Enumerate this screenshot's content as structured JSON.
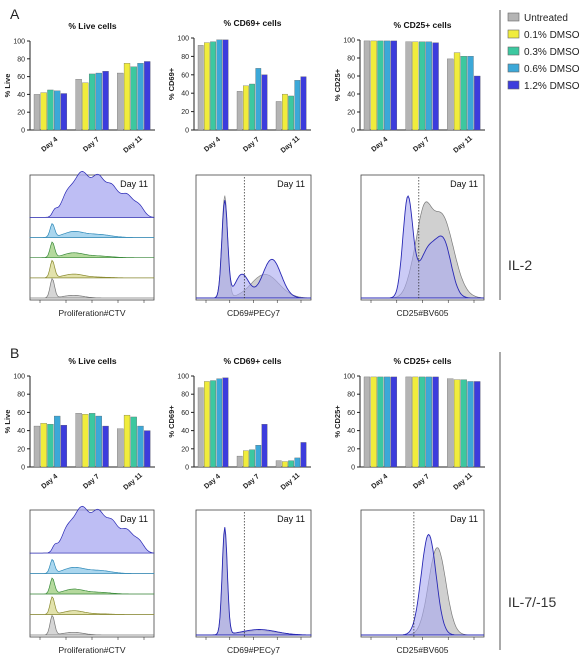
{
  "figure": {
    "colors": {
      "untreated": "#b4b4b4",
      "dmso_0_1": "#f0ec3c",
      "dmso_0_3": "#3cc8a0",
      "dmso_0_6": "#3ca8d8",
      "dmso_1_2": "#3c3cdc",
      "hist_fill": "#a8a8f0",
      "hist_line": "#2828b4",
      "hist_grey": "#c8c8c8"
    },
    "legend": [
      {
        "label": "Untreated",
        "color": "#b4b4b4"
      },
      {
        "label": "0.1% DMSO",
        "color": "#f0ec3c"
      },
      {
        "label": "0.3% DMSO",
        "color": "#3cc8a0"
      },
      {
        "label": "0.6% DMSO",
        "color": "#3ca8d8"
      },
      {
        "label": "1.2% DMSO",
        "color": "#3c3cdc"
      }
    ],
    "panels": [
      {
        "letter": "A",
        "condition": "IL-2"
      },
      {
        "letter": "B",
        "condition": "IL-7/-15"
      }
    ],
    "hist_day_label": "Day 11",
    "hist_titles": [
      "Proliferation#CTV",
      "CD69#PECy7",
      "CD25#BV605"
    ],
    "bar_titles": [
      "% Live cells",
      "% CD69+ cells",
      "% CD25+ cells"
    ],
    "bar_ylabels": [
      "% Live",
      "% CD69+",
      "% CD25+"
    ]
  },
  "chart_data": [
    {
      "type": "bar",
      "panel": "A",
      "title": "% Live cells",
      "ylabel": "% Live",
      "categories": [
        "Day 4",
        "Day 7",
        "Day 11"
      ],
      "ylim": [
        0,
        100
      ],
      "yticks": [
        0,
        20,
        40,
        60,
        80,
        100
      ],
      "series": [
        {
          "name": "Untreated",
          "values": [
            40,
            57,
            64
          ]
        },
        {
          "name": "0.1% DMSO",
          "values": [
            42,
            53,
            75
          ]
        },
        {
          "name": "0.3% DMSO",
          "values": [
            45,
            63,
            71
          ]
        },
        {
          "name": "0.6% DMSO",
          "values": [
            44,
            64,
            75
          ]
        },
        {
          "name": "1.2% DMSO",
          "values": [
            41,
            66,
            77
          ]
        }
      ]
    },
    {
      "type": "bar",
      "panel": "A",
      "title": "% CD69+ cells",
      "ylabel": "% CD69+",
      "categories": [
        "Day 4",
        "Day 7",
        "Day 11"
      ],
      "ylim": [
        0,
        100
      ],
      "yticks": [
        0,
        20,
        40,
        60,
        80,
        100
      ],
      "series": [
        {
          "name": "Untreated",
          "values": [
            92,
            42,
            31
          ]
        },
        {
          "name": "0.1% DMSO",
          "values": [
            95,
            48,
            39
          ]
        },
        {
          "name": "0.3% DMSO",
          "values": [
            96,
            50,
            37
          ]
        },
        {
          "name": "0.6% DMSO",
          "values": [
            98,
            67,
            54
          ]
        },
        {
          "name": "1.2% DMSO",
          "values": [
            98,
            60,
            58
          ]
        }
      ]
    },
    {
      "type": "bar",
      "panel": "A",
      "title": "% CD25+ cells",
      "ylabel": "% CD25+",
      "categories": [
        "Day 4",
        "Day 7",
        "Day 11"
      ],
      "ylim": [
        0,
        100
      ],
      "yticks": [
        0,
        20,
        40,
        60,
        80,
        100
      ],
      "series": [
        {
          "name": "Untreated",
          "values": [
            99,
            98,
            79
          ]
        },
        {
          "name": "0.1% DMSO",
          "values": [
            99,
            98,
            86
          ]
        },
        {
          "name": "0.3% DMSO",
          "values": [
            99,
            98,
            82
          ]
        },
        {
          "name": "0.6% DMSO",
          "values": [
            99,
            98,
            82
          ]
        },
        {
          "name": "1.2% DMSO",
          "values": [
            99,
            97,
            60
          ]
        }
      ]
    },
    {
      "type": "bar",
      "panel": "B",
      "title": "% Live cells",
      "ylabel": "% Live",
      "categories": [
        "Day 4",
        "Day 7",
        "Day 11"
      ],
      "ylim": [
        0,
        100
      ],
      "yticks": [
        0,
        20,
        40,
        60,
        80,
        100
      ],
      "series": [
        {
          "name": "Untreated",
          "values": [
            45,
            59,
            42
          ]
        },
        {
          "name": "0.1% DMSO",
          "values": [
            48,
            58,
            57
          ]
        },
        {
          "name": "0.3% DMSO",
          "values": [
            47,
            59,
            55
          ]
        },
        {
          "name": "0.6% DMSO",
          "values": [
            56,
            56,
            45
          ]
        },
        {
          "name": "1.2% DMSO",
          "values": [
            46,
            45,
            40
          ]
        }
      ]
    },
    {
      "type": "bar",
      "panel": "B",
      "title": "% CD69+ cells",
      "ylabel": "% CD69+",
      "categories": [
        "Day 4",
        "Day 7",
        "Day 11"
      ],
      "ylim": [
        0,
        100
      ],
      "yticks": [
        0,
        20,
        40,
        60,
        80,
        100
      ],
      "series": [
        {
          "name": "Untreated",
          "values": [
            87,
            12,
            7
          ]
        },
        {
          "name": "0.1% DMSO",
          "values": [
            94,
            18,
            6
          ]
        },
        {
          "name": "0.3% DMSO",
          "values": [
            95,
            19,
            7
          ]
        },
        {
          "name": "0.6% DMSO",
          "values": [
            97,
            24,
            10
          ]
        },
        {
          "name": "1.2% DMSO",
          "values": [
            98,
            47,
            27
          ]
        }
      ]
    },
    {
      "type": "bar",
      "panel": "B",
      "title": "% CD25+ cells",
      "ylabel": "% CD25+",
      "categories": [
        "Day 4",
        "Day 7",
        "Day 11"
      ],
      "ylim": [
        0,
        100
      ],
      "yticks": [
        0,
        20,
        40,
        60,
        80,
        100
      ],
      "series": [
        {
          "name": "Untreated",
          "values": [
            99,
            99,
            97
          ]
        },
        {
          "name": "0.1% DMSO",
          "values": [
            99,
            99,
            96
          ]
        },
        {
          "name": "0.3% DMSO",
          "values": [
            99,
            99,
            96
          ]
        },
        {
          "name": "0.6% DMSO",
          "values": [
            99,
            99,
            94
          ]
        },
        {
          "name": "1.2% DMSO",
          "values": [
            99,
            99,
            94
          ]
        }
      ]
    }
  ]
}
